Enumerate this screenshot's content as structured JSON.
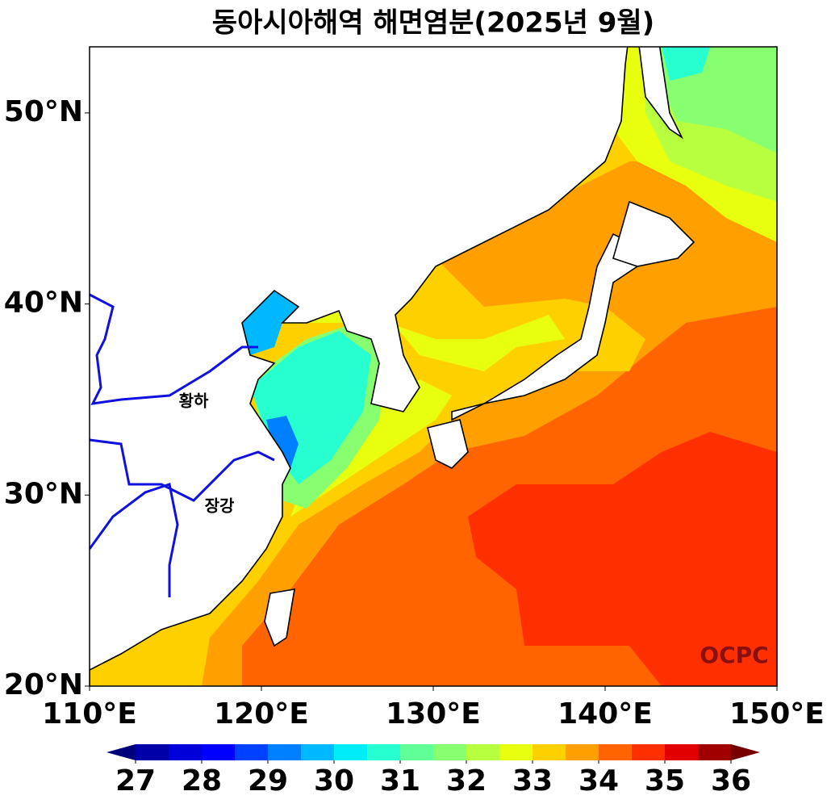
{
  "title": "동아시아해역 해면염분(2025년 9월)",
  "map": {
    "xlim": [
      110,
      150
    ],
    "ylim": [
      20,
      53.46
    ],
    "xticks": [
      {
        "value": 110,
        "label": "110°E"
      },
      {
        "value": 120,
        "label": "120°E"
      },
      {
        "value": 130,
        "label": "130°E"
      },
      {
        "value": 140,
        "label": "140°E"
      },
      {
        "value": 150,
        "label": "150°E"
      }
    ],
    "yticks": [
      {
        "value": 20,
        "label": "20°N"
      },
      {
        "value": 30,
        "label": "30°N"
      },
      {
        "value": 40,
        "label": "40°N"
      },
      {
        "value": 50,
        "label": "50°N"
      }
    ],
    "labels": [
      "황하",
      "장강"
    ],
    "logo": "OCPC"
  },
  "colorbar": {
    "range": [
      27,
      36
    ],
    "ticks": [
      27,
      28,
      29,
      30,
      31,
      32,
      33,
      34,
      35,
      36
    ],
    "colors": [
      "#0000a8",
      "#0000d8",
      "#0000ff",
      "#0040ff",
      "#0080ff",
      "#00b8ff",
      "#00ecf8",
      "#28ffd0",
      "#60ff98",
      "#88ff70",
      "#b8ff40",
      "#e8ff10",
      "#ffd000",
      "#ffa000",
      "#ff6400",
      "#ff3000",
      "#e00000",
      "#a00000"
    ],
    "extend_colors": [
      "#00007a",
      "#780000"
    ]
  }
}
